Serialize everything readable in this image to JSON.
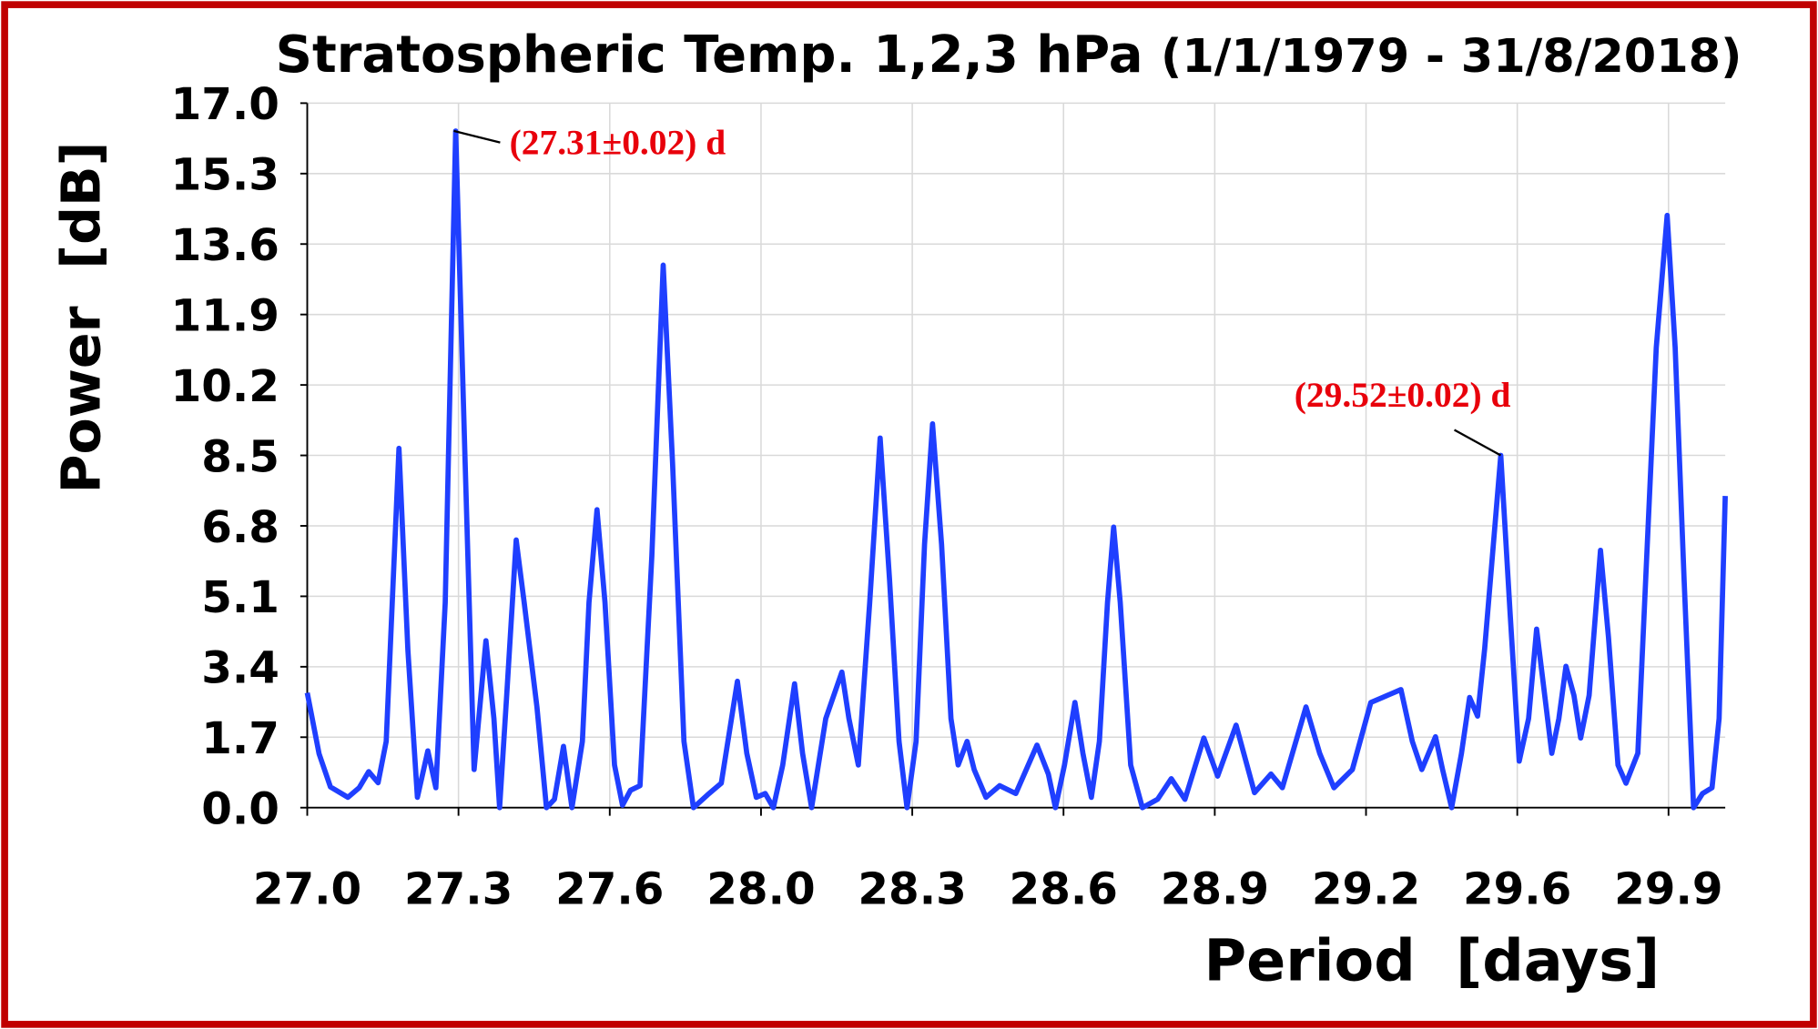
{
  "chart_data": {
    "type": "line",
    "title": "Stratospheric Temp. 1,2,3 hPa",
    "subtitle": "(1/1/1979 - 31/8/2018)",
    "x_label": "Period  [days]",
    "y_label": "Power  [dB]",
    "xlim": [
      27.0,
      30.0
    ],
    "ylim": [
      0,
      17
    ],
    "xticks": [
      {
        "value": 27.0,
        "label": "27.0"
      },
      {
        "value": 27.32,
        "label": "27.3"
      },
      {
        "value": 27.64,
        "label": "27.6"
      },
      {
        "value": 27.96,
        "label": "28.0"
      },
      {
        "value": 28.28,
        "label": "28.3"
      },
      {
        "value": 28.6,
        "label": "28.6"
      },
      {
        "value": 28.92,
        "label": "28.9"
      },
      {
        "value": 29.24,
        "label": "29.2"
      },
      {
        "value": 29.56,
        "label": "29.6"
      },
      {
        "value": 29.88,
        "label": "29.9"
      }
    ],
    "yticks": [
      {
        "value": 0,
        "label": "0.0"
      },
      1.7,
      3.4,
      5.1,
      6.8,
      8.5,
      10.2,
      11.9,
      13.6,
      15.3,
      {
        "value": 17,
        "label": "17.0"
      }
    ],
    "grid": true,
    "x": [
      27.0,
      27.025,
      27.049,
      27.086,
      27.11,
      27.13,
      27.15,
      27.167,
      27.194,
      27.213,
      27.233,
      27.255,
      27.272,
      27.292,
      27.314,
      27.334,
      27.353,
      27.378,
      27.395,
      27.407,
      27.422,
      27.442,
      27.459,
      27.486,
      27.506,
      27.523,
      27.542,
      27.56,
      27.582,
      27.596,
      27.613,
      27.63,
      27.65,
      27.667,
      27.684,
      27.704,
      27.729,
      27.753,
      27.773,
      27.797,
      27.817,
      27.847,
      27.876,
      27.91,
      27.93,
      27.95,
      27.969,
      27.986,
      28.006,
      28.031,
      28.048,
      28.067,
      28.097,
      28.131,
      28.146,
      28.166,
      28.19,
      28.212,
      28.232,
      28.252,
      28.269,
      28.288,
      28.306,
      28.323,
      28.342,
      28.362,
      28.377,
      28.396,
      28.411,
      28.436,
      28.465,
      28.499,
      28.544,
      28.568,
      28.583,
      28.602,
      28.624,
      28.641,
      28.659,
      28.676,
      28.693,
      28.706,
      28.72,
      28.742,
      28.767,
      28.799,
      28.828,
      28.857,
      28.897,
      28.926,
      28.965,
      29.004,
      29.039,
      29.063,
      29.113,
      29.142,
      29.172,
      29.211,
      29.25,
      29.275,
      29.314,
      29.338,
      29.358,
      29.387,
      29.402,
      29.421,
      29.442,
      29.459,
      29.476,
      29.491,
      29.525,
      29.545,
      29.564,
      29.584,
      29.601,
      29.618,
      29.633,
      29.648,
      29.663,
      29.68,
      29.694,
      29.712,
      29.736,
      29.753,
      29.773,
      29.79,
      29.815,
      29.834,
      29.854,
      29.877,
      29.894,
      29.913,
      29.933,
      29.952,
      29.972,
      29.987,
      30.0
    ],
    "series": [
      {
        "color": "#1f3fff",
        "values": [
          2.77,
          1.3,
          0.5,
          0.25,
          0.48,
          0.87,
          0.6,
          1.6,
          8.67,
          3.8,
          0.25,
          1.37,
          0.48,
          4.95,
          16.33,
          8.3,
          0.92,
          4.03,
          2.15,
          0,
          2.7,
          6.46,
          4.95,
          2.43,
          0,
          0.2,
          1.48,
          0,
          1.6,
          4.95,
          7.19,
          4.95,
          1.03,
          0.06,
          0.42,
          0.53,
          6.07,
          13.09,
          8.3,
          1.6,
          0,
          0.31,
          0.59,
          3.05,
          1.31,
          0.25,
          0.34,
          0,
          1.03,
          2.99,
          1.31,
          0,
          2.15,
          3.27,
          2.15,
          1.03,
          4.95,
          8.92,
          5.51,
          1.6,
          0,
          1.6,
          6.35,
          9.26,
          6.35,
          2.15,
          1.03,
          1.6,
          0.92,
          0.25,
          0.53,
          0.34,
          1.51,
          0.81,
          0,
          1.03,
          2.54,
          1.31,
          0.25,
          1.6,
          4.95,
          6.77,
          4.95,
          1.03,
          0,
          0.2,
          0.7,
          0.2,
          1.68,
          0.76,
          1.99,
          0.36,
          0.81,
          0.48,
          2.43,
          1.31,
          0.48,
          0.92,
          2.54,
          2.66,
          2.85,
          1.6,
          0.92,
          1.71,
          0.92,
          0,
          1.31,
          2.66,
          2.21,
          3.83,
          8.5,
          4.67,
          1.12,
          2.15,
          4.31,
          2.71,
          1.31,
          2.15,
          3.41,
          2.71,
          1.68,
          2.71,
          6.21,
          4.11,
          1.03,
          0.59,
          1.31,
          6.07,
          11.1,
          14.29,
          11.1,
          5.51,
          0,
          0.34,
          0.48,
          2.15,
          7.52
        ]
      }
    ],
    "annotations": [
      {
        "text": "(27.31±0.02) d",
        "x": 27.31,
        "y": 16.33,
        "color": "#e8000b"
      },
      {
        "text": "(29.52±0.02) d",
        "x": 29.525,
        "y": 8.5,
        "color": "#e8000b"
      }
    ]
  }
}
